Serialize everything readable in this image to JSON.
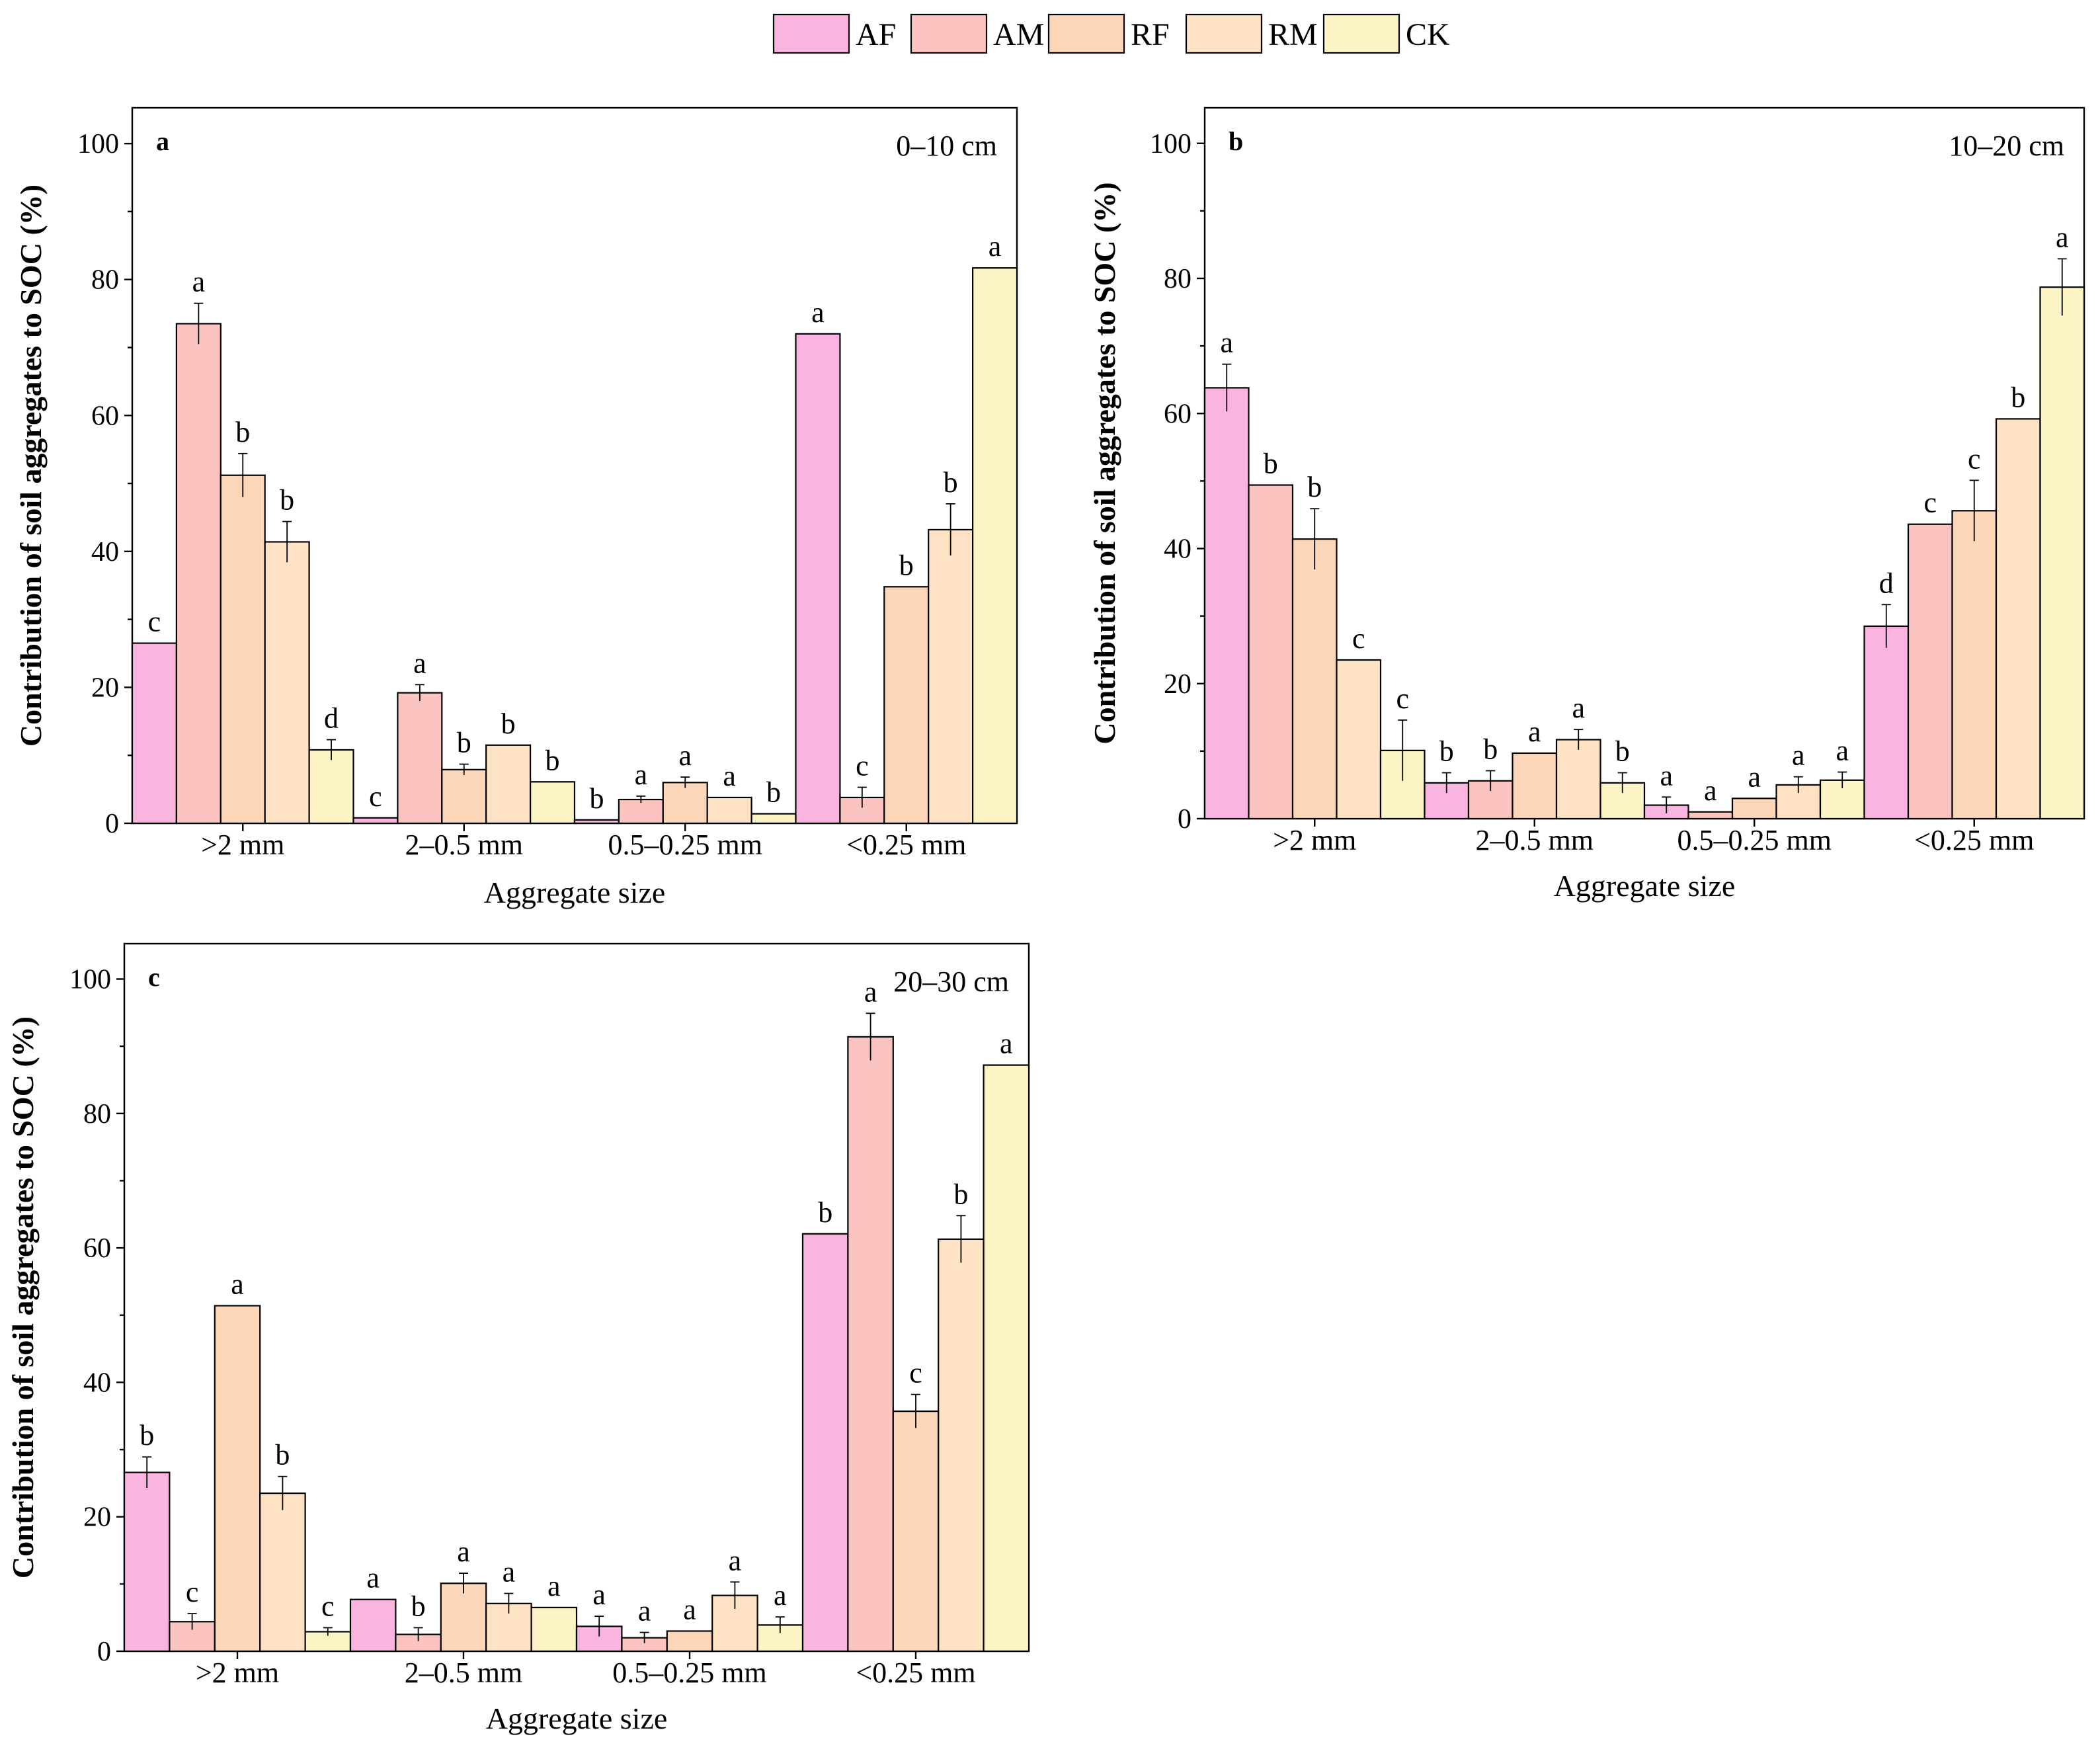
{
  "chart_data": [
    {
      "type": "bar",
      "panel": "a",
      "depth": "0–10 cm",
      "xlabel": "Aggregate size",
      "ylabel": "Contribution of soil aggregates to SOC (%)",
      "ylim": [
        0,
        100
      ],
      "yticks": [
        0,
        20,
        40,
        60,
        80,
        100
      ],
      "categories": [
        ">2 mm",
        "2–0.5 mm",
        "0.5–0.25 mm",
        "<0.25 mm"
      ],
      "series": [
        {
          "name": "AF",
          "values": [
            26.5,
            0.8,
            0.5,
            72.0
          ],
          "errors": [
            0.0,
            0.0,
            0.0,
            0.0
          ],
          "letters": [
            "c",
            "c",
            "b",
            "a"
          ]
        },
        {
          "name": "AM",
          "values": [
            73.5,
            19.2,
            3.5,
            3.8
          ],
          "errors": [
            3.0,
            1.2,
            0.5,
            1.5
          ],
          "letters": [
            "a",
            "a",
            "a",
            "c"
          ]
        },
        {
          "name": "RF",
          "values": [
            51.2,
            7.9,
            6.0,
            34.8
          ],
          "errors": [
            3.2,
            0.8,
            0.8,
            0.0
          ],
          "letters": [
            "b",
            "b",
            "a",
            "b"
          ]
        },
        {
          "name": "RM",
          "values": [
            41.4,
            11.5,
            3.8,
            43.2
          ],
          "errors": [
            3.0,
            0.0,
            0.0,
            3.8
          ],
          "letters": [
            "b",
            "b",
            "a",
            "b"
          ]
        },
        {
          "name": "CK",
          "values": [
            10.8,
            6.1,
            1.4,
            81.7
          ],
          "errors": [
            1.5,
            0.0,
            0.0,
            0.0
          ],
          "letters": [
            "d",
            "b",
            "b",
            "a"
          ]
        }
      ]
    },
    {
      "type": "bar",
      "panel": "b",
      "depth": "10–20 cm",
      "xlabel": "Aggregate size",
      "ylabel": "Contribution of soil aggregates to SOC (%)",
      "ylim": [
        0,
        100
      ],
      "yticks": [
        0,
        20,
        40,
        60,
        80,
        100
      ],
      "categories": [
        ">2 mm",
        "2–0.5 mm",
        "0.5–0.25 mm",
        "<0.25 mm"
      ],
      "series": [
        {
          "name": "AF",
          "values": [
            63.8,
            5.3,
            2.0,
            28.5
          ],
          "errors": [
            3.5,
            1.5,
            1.2,
            3.2
          ],
          "letters": [
            "a",
            "b",
            "a",
            "d"
          ]
        },
        {
          "name": "AM",
          "values": [
            49.4,
            5.6,
            1.0,
            43.6
          ],
          "errors": [
            0.0,
            1.5,
            0.0,
            0.0
          ],
          "letters": [
            "b",
            "b",
            "a",
            "c"
          ]
        },
        {
          "name": "RF",
          "values": [
            41.4,
            9.7,
            3.0,
            45.6
          ],
          "errors": [
            4.5,
            0.0,
            0.0,
            4.5
          ],
          "letters": [
            "b",
            "a",
            "a",
            "c"
          ]
        },
        {
          "name": "RM",
          "values": [
            23.5,
            11.7,
            5.0,
            59.2
          ],
          "errors": [
            0.0,
            1.5,
            1.2,
            0.0
          ],
          "letters": [
            "c",
            "a",
            "a",
            "b"
          ]
        },
        {
          "name": "CK",
          "values": [
            10.1,
            5.3,
            5.7,
            78.7
          ],
          "errors": [
            4.5,
            1.5,
            1.2,
            4.2
          ],
          "letters": [
            "c",
            "b",
            "a",
            "a"
          ]
        }
      ]
    },
    {
      "type": "bar",
      "panel": "c",
      "depth": "20–30 cm",
      "xlabel": "Aggregate size",
      "ylabel": "Contribution of soil aggregates to SOC (%)",
      "ylim": [
        0,
        100
      ],
      "yticks": [
        0,
        20,
        40,
        60,
        80,
        100
      ],
      "categories": [
        ">2 mm",
        "2–0.5 mm",
        "0.5–0.25 mm",
        "<0.25 mm"
      ],
      "series": [
        {
          "name": "AF",
          "values": [
            26.6,
            7.7,
            3.7,
            62.1
          ],
          "errors": [
            2.3,
            0.0,
            1.5,
            0.0
          ],
          "letters": [
            "b",
            "a",
            "a",
            "b"
          ]
        },
        {
          "name": "AM",
          "values": [
            4.4,
            2.5,
            2.0,
            91.4
          ],
          "errors": [
            1.2,
            1.0,
            0.8,
            3.5
          ],
          "letters": [
            "c",
            "b",
            "a",
            "a"
          ]
        },
        {
          "name": "RF",
          "values": [
            51.4,
            10.1,
            3.0,
            35.7
          ],
          "errors": [
            0.0,
            1.5,
            0.0,
            2.5
          ],
          "letters": [
            "a",
            "a",
            "a",
            "c"
          ]
        },
        {
          "name": "RM",
          "values": [
            23.5,
            7.1,
            8.3,
            61.3
          ],
          "errors": [
            2.5,
            1.5,
            2.0,
            3.5
          ],
          "letters": [
            "b",
            "a",
            "a",
            "b"
          ]
        },
        {
          "name": "CK",
          "values": [
            2.9,
            6.5,
            3.9,
            87.2
          ],
          "errors": [
            0.6,
            0.0,
            1.2,
            0.0
          ],
          "letters": [
            "c",
            "a",
            "a",
            "a"
          ]
        }
      ]
    }
  ],
  "legend": {
    "items": [
      {
        "name": "AF",
        "color": "#f9b4df"
      },
      {
        "name": "AM",
        "color": "#fbc4c0"
      },
      {
        "name": "RF",
        "color": "#fbd6b8"
      },
      {
        "name": "RM",
        "color": "#fde2c4"
      },
      {
        "name": "CK",
        "color": "#fdf4c6"
      }
    ]
  }
}
